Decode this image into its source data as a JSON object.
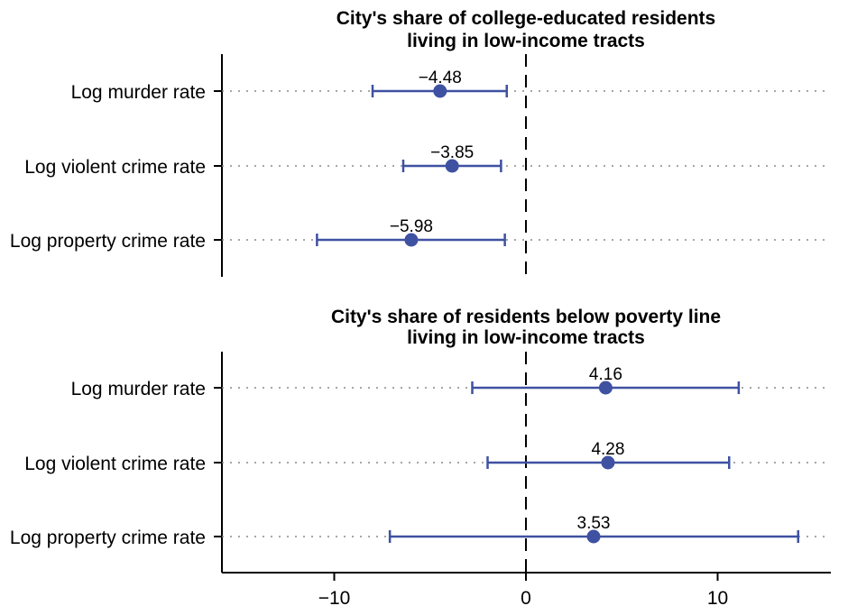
{
  "chart_data": {
    "type": "scatter",
    "colors": {
      "marker": "#3f51a1",
      "zero_line": "#000000",
      "row_guide": "#888888"
    },
    "grid": false,
    "reference_line": {
      "x": 0,
      "style": "dashed"
    },
    "xlim": [
      -16,
      16
    ],
    "xticks": [
      -10,
      0,
      10
    ],
    "xtick_labels": [
      "−10",
      "0",
      "10"
    ],
    "panels": [
      {
        "title_lines": [
          "City's share of college-educated residents",
          "living in low-income tracts"
        ],
        "rows": [
          {
            "label": "Log murder rate",
            "estimate": -4.48,
            "estimate_label": "−4.48",
            "ci": [
              -8.0,
              -1.0
            ]
          },
          {
            "label": "Log violent crime rate",
            "estimate": -3.85,
            "estimate_label": "−3.85",
            "ci": [
              -6.4,
              -1.3
            ]
          },
          {
            "label": "Log property crime rate",
            "estimate": -5.98,
            "estimate_label": "−5.98",
            "ci": [
              -10.9,
              -1.1
            ]
          }
        ]
      },
      {
        "title_lines": [
          "City's share of residents below poverty line",
          "living in low-income tracts"
        ],
        "rows": [
          {
            "label": "Log murder rate",
            "estimate": 4.16,
            "estimate_label": "4.16",
            "ci": [
              -2.8,
              11.1
            ]
          },
          {
            "label": "Log violent crime rate",
            "estimate": 4.28,
            "estimate_label": "4.28",
            "ci": [
              -2.0,
              10.6
            ]
          },
          {
            "label": "Log property crime rate",
            "estimate": 3.53,
            "estimate_label": "3.53",
            "ci": [
              -7.1,
              14.2
            ]
          }
        ]
      }
    ]
  }
}
